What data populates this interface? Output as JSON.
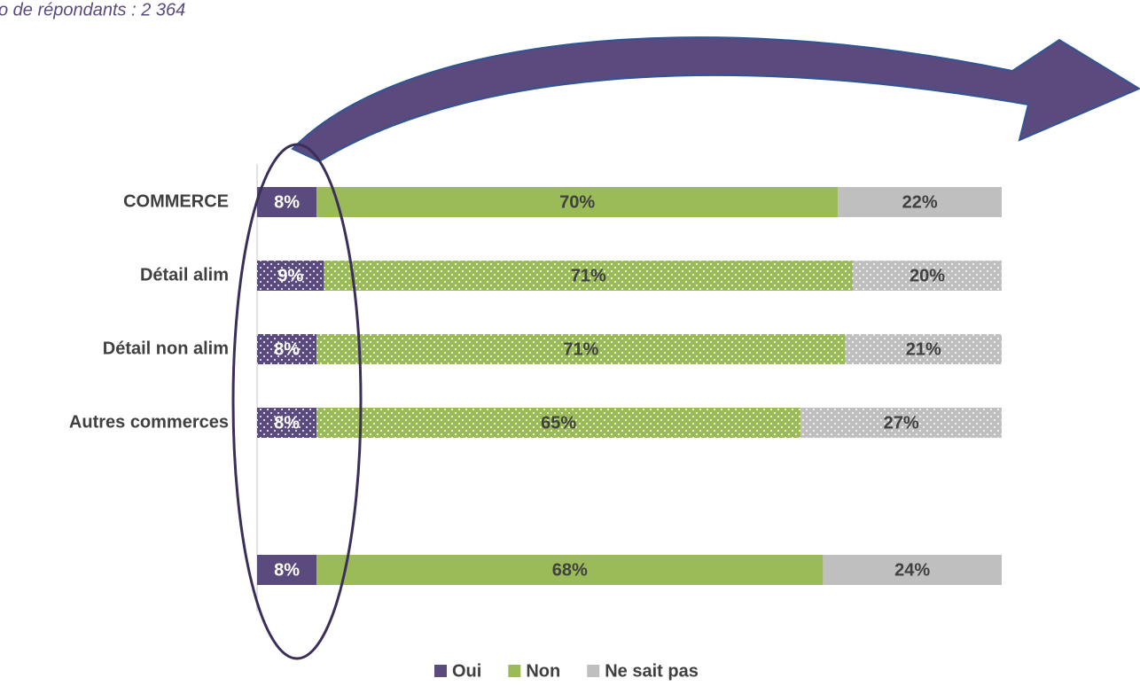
{
  "chart_data": {
    "type": "stacked_barh",
    "subtitle": "o de répondants : 2 364",
    "categories": [
      "COMMERCE",
      "Détail alim",
      "Détail non alim",
      "Autres commerces",
      null,
      null
    ],
    "patterned": [
      false,
      true,
      true,
      true,
      false,
      false
    ],
    "series": [
      {
        "name": "Oui",
        "color": "#5b4a7d",
        "values": [
          8,
          9,
          8,
          8,
          null,
          8
        ],
        "value_labels": [
          "8%",
          "9%",
          "8%",
          "8%",
          null,
          "8%"
        ]
      },
      {
        "name": "Non",
        "color": "#9bbb59",
        "values": [
          70,
          71,
          71,
          65,
          null,
          68
        ],
        "value_labels": [
          "70%",
          "71%",
          "71%",
          "65%",
          null,
          "68%"
        ]
      },
      {
        "name": "Ne sait pas",
        "color": "#bfbfbf",
        "values": [
          22,
          20,
          21,
          27,
          null,
          24
        ],
        "value_labels": [
          "22%",
          "20%",
          "21%",
          "27%",
          null,
          "24%"
        ]
      }
    ],
    "xlim": [
      0,
      100
    ],
    "legend": "bottom"
  }
}
